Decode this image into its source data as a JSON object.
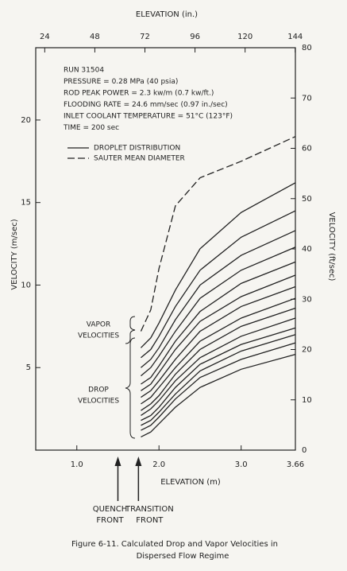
{
  "chart_data": {
    "type": "line",
    "top_axis_label": "ELEVATION (in.)",
    "x_label": "ELEVATION (m)",
    "y_label": "VELOCITY (m/sec)",
    "y2_label": "VELOCITY (ft/sec)",
    "xlim": [
      0.5,
      3.66
    ],
    "xticks": [
      {
        "value": 1,
        "label": "1.0"
      },
      {
        "value": 2,
        "label": "2.0"
      },
      {
        "value": 3,
        "label": "3.0"
      },
      3.66
    ],
    "x2lim": [
      19.69,
      144.09
    ],
    "x2ticks": [
      24,
      48,
      72,
      96,
      120,
      144
    ],
    "ylim": [
      0,
      24.38
    ],
    "yticks": [
      5,
      10,
      15,
      20
    ],
    "y2lim": [
      0,
      80
    ],
    "y2ticks": [
      0,
      10,
      20,
      30,
      40,
      50,
      60,
      70,
      80
    ],
    "info": [
      "RUN 31504",
      "PRESSURE = 0.28 MPa (40 psia)",
      "ROD PEAK POWER = 2.3 kw/m (0.7 kw/ft.)",
      "FLOODING RATE = 24.6 mm/sec (0.97 in./sec)",
      "INLET COOLANT TEMPERATURE = 51°C (123°F)",
      "TIME = 200 sec"
    ],
    "legend": [
      {
        "label": "DROPLET DISTRIBUTION",
        "dash": "none"
      },
      {
        "label": "SAUTER MEAN DIAMETER",
        "dash": "9 4"
      }
    ],
    "brace_labels": [
      [
        "VAPOR",
        "VELOCITIES"
      ],
      [
        "DROP",
        "VELOCITIES"
      ]
    ],
    "markers": [
      {
        "label": [
          "QUENCH",
          "FRONT"
        ],
        "x": 1.5
      },
      {
        "label": [
          "TRANSITION",
          "FRONT"
        ],
        "x": 1.75
      }
    ],
    "caption": [
      "Figure 6-11.    Calculated Drop and Vapor Velocities in",
      "Dispersed Flow Regime"
    ],
    "color": "#222222",
    "x": [
      1.78,
      1.9,
      2.0,
      2.2,
      2.5,
      3.0,
      3.66
    ],
    "series": [
      {
        "dash": "9 4",
        "values": [
          7.2,
          8.5,
          11.0,
          14.8,
          16.5,
          17.5,
          19.0
        ]
      },
      {
        "dash": "none",
        "values": [
          6.2,
          6.8,
          7.7,
          9.7,
          12.2,
          14.4,
          16.2
        ]
      },
      {
        "dash": "none",
        "values": [
          5.6,
          6.1,
          6.9,
          8.7,
          10.9,
          12.9,
          14.5
        ]
      },
      {
        "dash": "none",
        "values": [
          5.0,
          5.5,
          6.2,
          7.9,
          10.0,
          11.8,
          13.3
        ]
      },
      {
        "dash": "none",
        "values": [
          4.5,
          5.0,
          5.7,
          7.2,
          9.2,
          10.9,
          12.3
        ]
      },
      {
        "dash": "none",
        "values": [
          4.0,
          4.4,
          5.1,
          6.6,
          8.4,
          10.1,
          11.4
        ]
      },
      {
        "dash": "none",
        "values": [
          3.6,
          4.0,
          4.7,
          6.1,
          7.8,
          9.3,
          10.6
        ]
      },
      {
        "dash": "none",
        "values": [
          3.2,
          3.6,
          4.2,
          5.5,
          7.2,
          8.7,
          9.9
        ]
      },
      {
        "dash": "none",
        "values": [
          2.8,
          3.2,
          3.8,
          5.0,
          6.6,
          8.0,
          9.2
        ]
      },
      {
        "dash": "none",
        "values": [
          2.4,
          2.8,
          3.3,
          4.6,
          6.1,
          7.5,
          8.6
        ]
      },
      {
        "dash": "none",
        "values": [
          2.1,
          2.5,
          3.0,
          4.2,
          5.6,
          6.9,
          8.0
        ]
      },
      {
        "dash": "none",
        "values": [
          1.8,
          2.1,
          2.6,
          3.8,
          5.2,
          6.4,
          7.4
        ]
      },
      {
        "dash": "none",
        "values": [
          1.5,
          1.8,
          2.3,
          3.4,
          4.8,
          6.0,
          7.0
        ]
      },
      {
        "dash": "none",
        "values": [
          1.2,
          1.5,
          2.0,
          3.1,
          4.4,
          5.5,
          6.5
        ]
      },
      {
        "dash": "none",
        "values": [
          0.8,
          1.1,
          1.6,
          2.6,
          3.8,
          4.9,
          5.8
        ]
      }
    ]
  }
}
